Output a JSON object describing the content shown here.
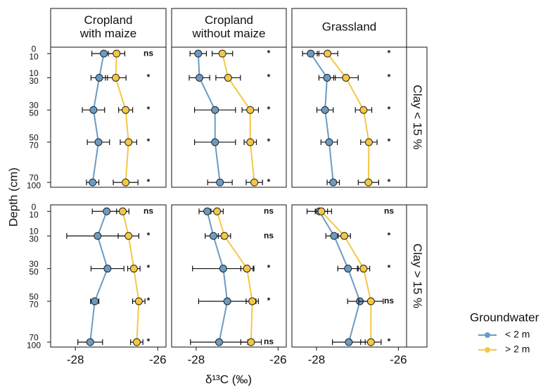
{
  "chart_data": {
    "type": "dot",
    "x_label": "δ¹³C (‰)",
    "y_label": "Depth (cm)",
    "xlim": [
      -28.6,
      -25.8
    ],
    "xticks": [
      -28,
      -26
    ],
    "ylim": [
      1,
      88
    ],
    "yticks": [
      {
        "value": 5,
        "label": "0\n10"
      },
      {
        "value": 20,
        "label": "10\n30"
      },
      {
        "value": 40,
        "label": "30\n50"
      },
      {
        "value": 60,
        "label": "50\n70"
      },
      {
        "value": 85,
        "label": "70\n100"
      }
    ],
    "column_titles": [
      "Cropland\nwith maize",
      "Cropland\nwithout maize",
      "Grassland"
    ],
    "row_titles": [
      "Clay < 15 %",
      "Clay > 15 %"
    ],
    "legend_title": "Groundwater",
    "legend_position": "right",
    "groups": [
      {
        "name": "< 2 m",
        "color": "#6b9bc3"
      },
      {
        "name": "> 2 m",
        "color": "#f5c842"
      }
    ],
    "panels": [
      {
        "series": [
          {
            "values": [
              -27.31,
              -27.42,
              -27.56,
              -27.44,
              -27.58
            ],
            "errors": [
              0.29,
              0.2,
              0.27,
              0.27,
              0.15
            ]
          },
          {
            "values": [
              -27.0,
              -27.02,
              -26.78,
              -26.71,
              -26.78
            ],
            "errors": [
              0.2,
              0.25,
              0.17,
              0.2,
              0.3
            ]
          }
        ],
        "significance": [
          "ns",
          "*",
          "*",
          "*",
          "*"
        ]
      },
      {
        "series": [
          {
            "values": [
              -27.95,
              -27.92,
              -27.54,
              -27.54,
              -27.42
            ],
            "errors": [
              0.2,
              0.25,
              0.5,
              0.5,
              0.3
            ]
          },
          {
            "values": [
              -27.36,
              -27.22,
              -26.68,
              -26.68,
              -26.58
            ],
            "errors": [
              0.25,
              0.3,
              0.2,
              0.15,
              0.2
            ]
          }
        ],
        "significance": [
          "*",
          "*",
          "*",
          "*",
          "*"
        ]
      },
      {
        "series": [
          {
            "values": [
              -28.14,
              -27.74,
              -27.79,
              -27.69,
              -27.59
            ],
            "errors": [
              0.2,
              0.2,
              0.2,
              0.2,
              0.15
            ]
          },
          {
            "values": [
              -27.73,
              -27.28,
              -26.85,
              -26.72,
              -26.73
            ],
            "errors": [
              0.25,
              0.3,
              0.2,
              0.2,
              0.25
            ]
          }
        ],
        "significance": [
          "*",
          "*",
          "*",
          "*",
          "*"
        ]
      },
      {
        "series": [
          {
            "values": [
              -27.24,
              -27.46,
              -27.22,
              -27.53,
              -27.64
            ],
            "errors": [
              0.35,
              0.75,
              0.4,
              0.1,
              0.3
            ]
          },
          {
            "values": [
              -26.85,
              -26.71,
              -26.58,
              -26.46,
              -26.51
            ],
            "errors": [
              0.15,
              0.25,
              0.15,
              0.15,
              0.15
            ]
          }
        ],
        "significance": [
          "ns",
          "*",
          "*",
          "*",
          "*"
        ]
      },
      {
        "series": [
          {
            "values": [
              -27.73,
              -27.58,
              -27.34,
              -27.24,
              -27.44
            ],
            "errors": [
              0.2,
              0.2,
              0.75,
              0.7,
              0.7
            ]
          },
          {
            "values": [
              -27.49,
              -27.31,
              -26.76,
              -26.63,
              -26.66
            ],
            "errors": [
              0.15,
              0.15,
              0.15,
              0.15,
              0.25
            ]
          }
        ],
        "significance": [
          "ns",
          "ns",
          "*",
          "*",
          "ns"
        ]
      },
      {
        "series": [
          {
            "values": [
              -27.93,
              -27.57,
              -27.23,
              -26.94,
              -27.21
            ],
            "errors": [
              0.3,
              0.2,
              0.25,
              0.3,
              0.4
            ]
          },
          {
            "values": [
              -27.88,
              -27.32,
              -26.85,
              -26.67,
              -26.67
            ],
            "errors": [
              0.15,
              0.15,
              0.15,
              0.3,
              0.25
            ]
          }
        ],
        "significance": [
          "ns",
          "*",
          "*",
          "ns",
          "*"
        ]
      }
    ]
  }
}
